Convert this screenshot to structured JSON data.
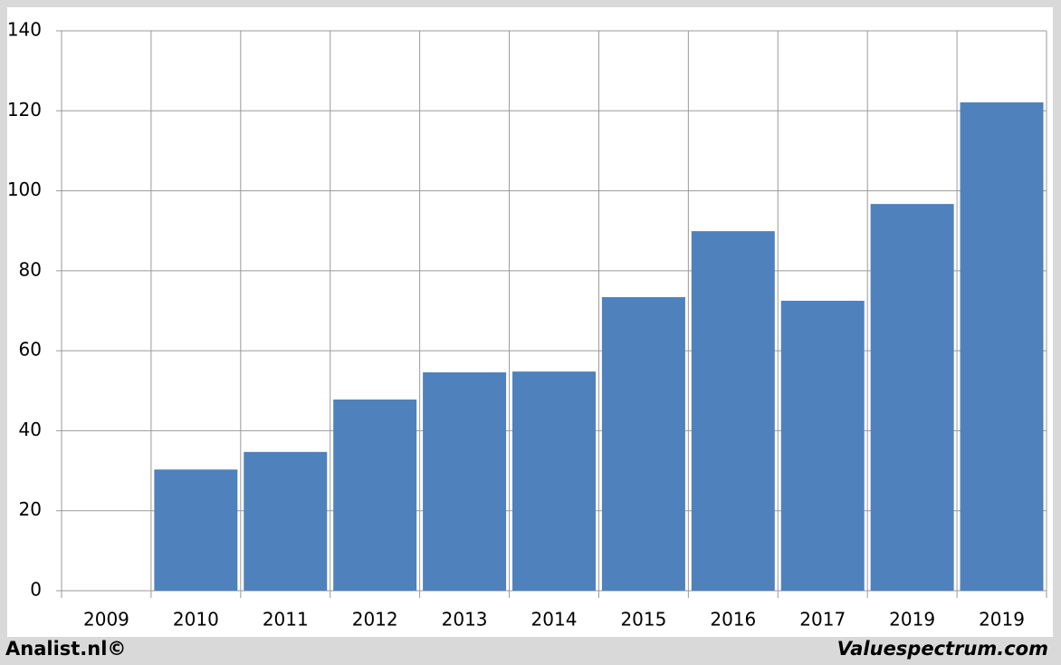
{
  "chart_data": {
    "type": "bar",
    "categories": [
      "2009",
      "2010",
      "2011",
      "2012",
      "2013",
      "2014",
      "2015",
      "2016",
      "2017",
      "2019",
      "2019"
    ],
    "values": [
      0,
      30.3,
      34.7,
      47.8,
      54.6,
      54.8,
      73.4,
      89.9,
      72.5,
      96.7,
      122.1
    ],
    "color": "#4f81bd",
    "ylim": [
      0,
      140
    ],
    "yticks": [
      0,
      20,
      40,
      60,
      80,
      100,
      120,
      140
    ],
    "grid": true
  },
  "footer": {
    "left": "Analist.nl©",
    "right": "Valuespectrum.com"
  }
}
